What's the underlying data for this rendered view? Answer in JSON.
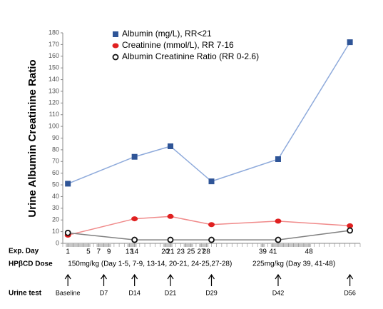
{
  "chart_data": {
    "type": "line",
    "ylabel": "Urine Albumin Creatinine Ratio",
    "x": [
      1,
      14,
      21,
      29,
      42,
      56
    ],
    "xlim": [
      0,
      58
    ],
    "xlabel": "Exp. Day",
    "xticks": [
      1,
      5,
      7,
      9,
      13,
      14,
      20,
      21,
      23,
      25,
      27,
      28,
      39,
      41,
      48
    ],
    "ylim": [
      0,
      180
    ],
    "yticks": [
      0,
      10,
      20,
      30,
      40,
      50,
      60,
      70,
      80,
      90,
      100,
      110,
      120,
      130,
      140,
      150,
      160,
      170,
      180
    ],
    "series": [
      {
        "name": "Albumin (mg/L), RR<21",
        "color": "#2f5597",
        "line_color": "#8eaadb",
        "marker": "square",
        "values": [
          51,
          74,
          83,
          53,
          72,
          172
        ]
      },
      {
        "name": "Creatinine (mmol/L), RR 7-16",
        "color": "#e02020",
        "line_color": "#f08a8a",
        "marker": "circle",
        "values": [
          7,
          21,
          23,
          16,
          19,
          15
        ]
      },
      {
        "name": "Albumin Creatinine Ratio (RR 0-2.6)",
        "color": "#111111",
        "line_color": "#808080",
        "marker": "ring",
        "values": [
          9,
          3,
          3,
          3,
          3,
          11
        ]
      }
    ],
    "dosing_days": [
      [
        1,
        5
      ],
      [
        7,
        9
      ],
      [
        13,
        14
      ],
      [
        20,
        21
      ],
      [
        24,
        25
      ],
      [
        27,
        28
      ],
      [
        39,
        39
      ],
      [
        41,
        48
      ]
    ],
    "dose_label": "HPβCD Dose",
    "doses": [
      {
        "text": "150mg/kg (Day 1-5, 7-9, 13-14, 20-21, 24-25,27-28)",
        "day": 1
      },
      {
        "text": "225mg/kg (Day 39, 41-48)",
        "day": 37
      }
    ],
    "urine_label": "Urine test",
    "urine_tests": [
      {
        "label": "Baseline",
        "day": 1
      },
      {
        "label": "D7",
        "day": 8
      },
      {
        "label": "D14",
        "day": 14
      },
      {
        "label": "D21",
        "day": 21
      },
      {
        "label": "D29",
        "day": 29
      },
      {
        "label": "D42",
        "day": 42
      },
      {
        "label": "D56",
        "day": 56
      }
    ]
  }
}
